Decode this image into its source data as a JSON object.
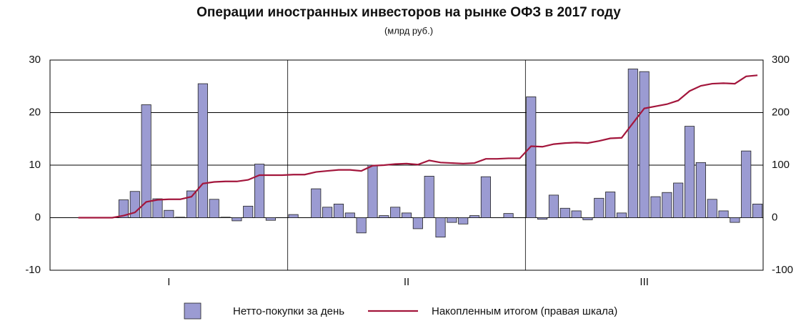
{
  "chart_data": {
    "type": "bar_line",
    "title": "Операции иностранных инвесторов на рынке ОФЗ в 2017 году",
    "subtitle": "(млрд руб.)",
    "categories": [
      null,
      null,
      null,
      null,
      null,
      null,
      null,
      null,
      null,
      null,
      null,
      null,
      null,
      null,
      null,
      null,
      null,
      null,
      null,
      null,
      null,
      null,
      null,
      null,
      null,
      null,
      null,
      null,
      null,
      null,
      null,
      null,
      null,
      null,
      null,
      null,
      null,
      null,
      null,
      null,
      null,
      null,
      null,
      null,
      null,
      null,
      null,
      null,
      null,
      null,
      null,
      null,
      null,
      null,
      null,
      null,
      null,
      null,
      null,
      null,
      null,
      null,
      null
    ],
    "groups": [
      "I",
      "II",
      "III"
    ],
    "series": [
      {
        "name": "Нетто-покупки за день",
        "type": "bar",
        "color": "#9b9bd2",
        "values": [
          null,
          null,
          0,
          0,
          0,
          0,
          3.4,
          5.0,
          21.5,
          3.6,
          1.4,
          0.1,
          5.1,
          25.5,
          3.5,
          0.1,
          -0.6,
          2.2,
          10.2,
          -0.5,
          0,
          0.6,
          0,
          5.5,
          2.0,
          2.6,
          0.9,
          -2.9,
          10.0,
          0.4,
          2.0,
          0.9,
          -2.1,
          7.9,
          -3.7,
          -0.9,
          -1.2,
          0.4,
          7.8,
          0,
          0.8,
          0,
          23.0,
          -0.3,
          4.3,
          1.8,
          1.3,
          -0.4,
          3.7,
          4.9,
          0.9,
          28.3,
          27.8,
          4.0,
          4.8,
          6.6,
          17.4,
          10.5,
          3.5,
          1.3,
          -0.9,
          12.7,
          2.6
        ]
      },
      {
        "name": "Накопленным итогом (правая шкала)",
        "type": "line",
        "axis": "y2",
        "color": "#a3163c",
        "values": [
          null,
          null,
          0,
          0,
          0,
          0,
          4,
          10,
          30,
          34,
          35,
          35,
          40,
          65,
          68,
          69,
          69,
          72,
          81,
          81,
          81,
          82,
          82,
          87,
          89,
          91,
          91,
          89,
          99,
          100,
          102,
          103,
          101,
          109,
          105,
          104,
          103,
          104,
          112,
          112,
          113,
          113,
          136,
          135,
          140,
          142,
          143,
          142,
          146,
          151,
          152,
          180,
          208,
          212,
          216,
          223,
          241,
          251,
          255,
          256,
          255,
          269,
          271
        ]
      }
    ],
    "ylim": [
      -10,
      30
    ],
    "yticks": [
      -10,
      0,
      10,
      20,
      30
    ],
    "y2lim": [
      -100,
      300
    ],
    "y2ticks": [
      -100,
      0,
      100,
      200,
      300
    ],
    "grid": true
  }
}
